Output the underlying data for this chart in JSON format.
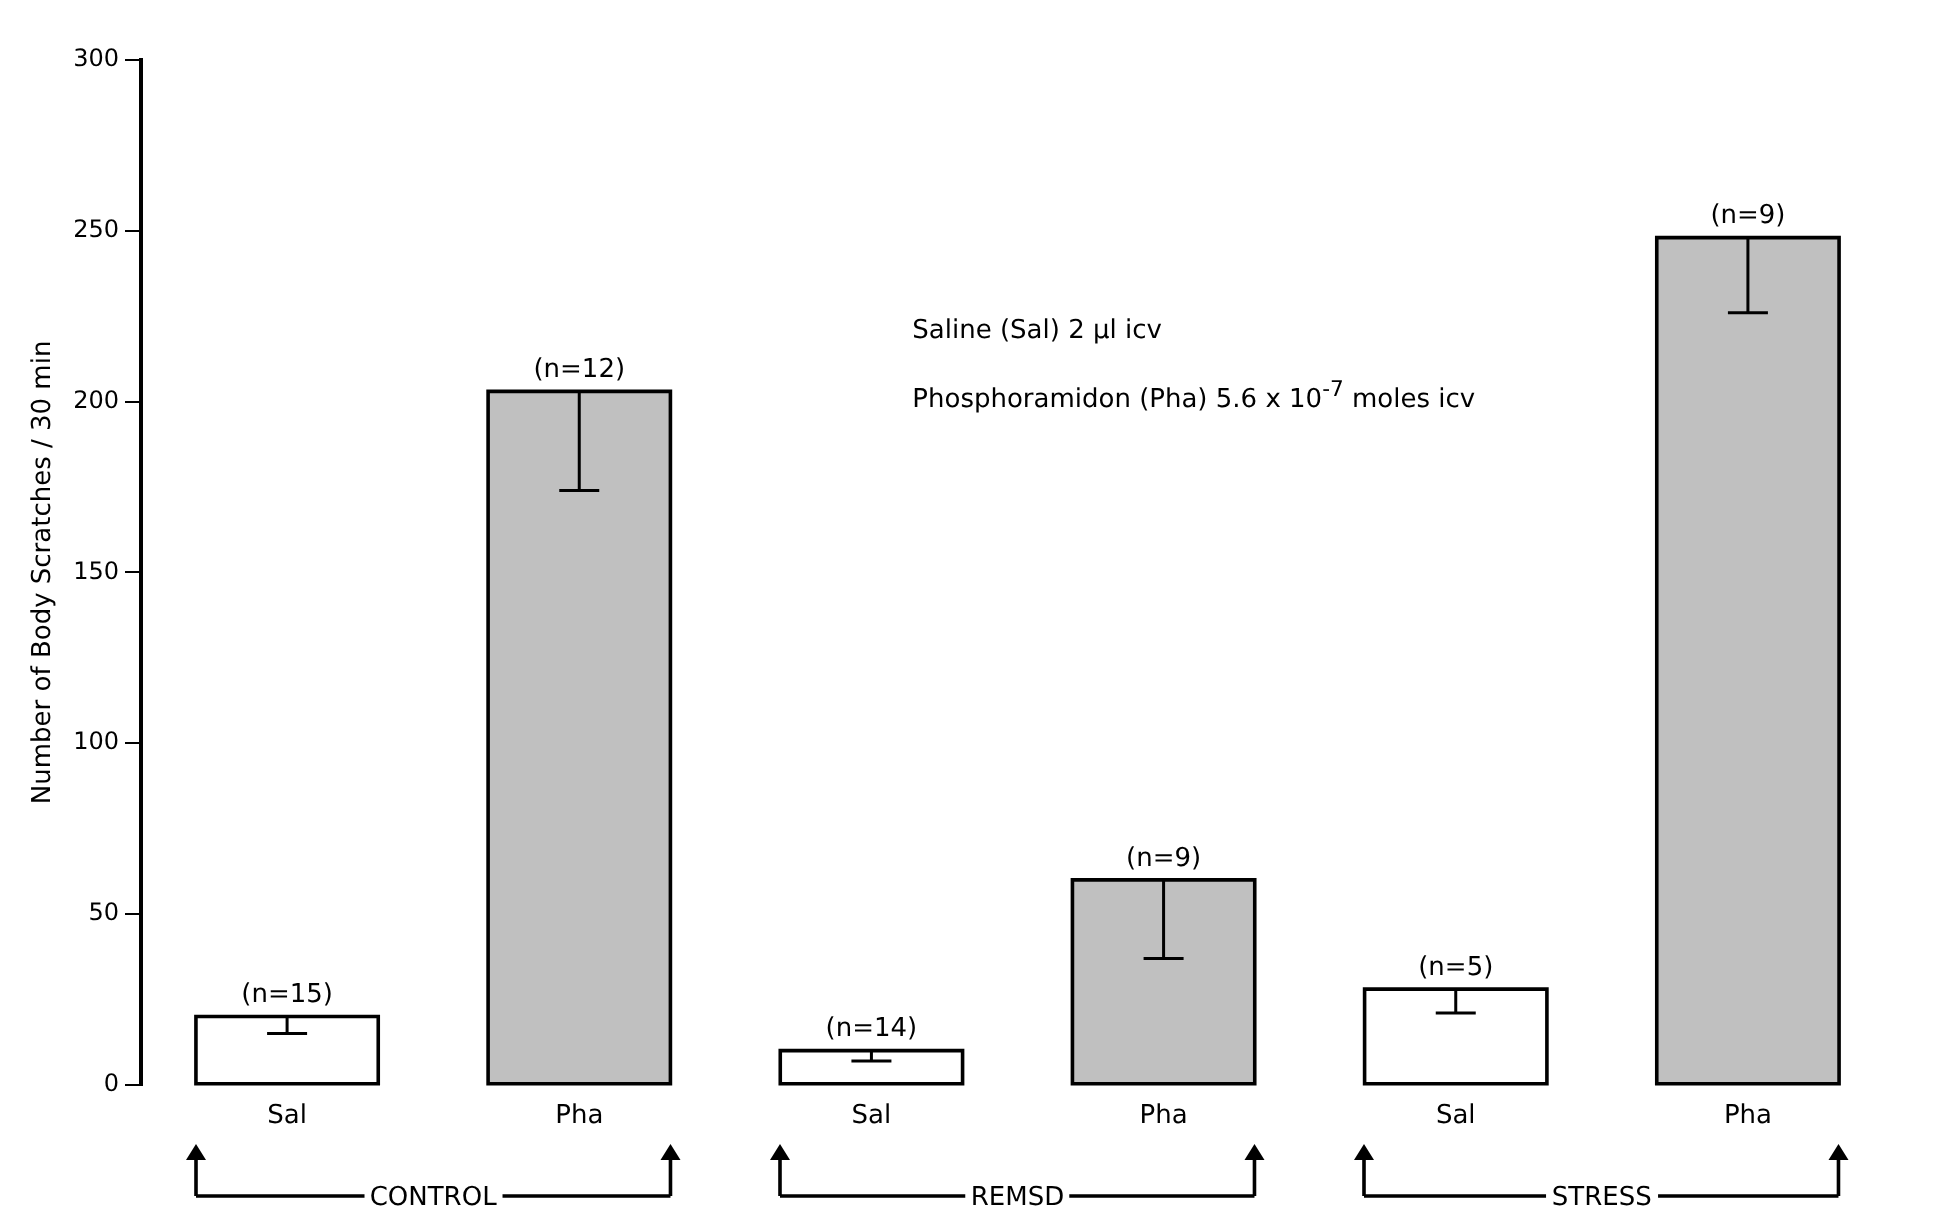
{
  "chart_data": {
    "type": "bar",
    "ylabel": "Number of Body Scratches / 30 min",
    "categories": [
      "Sal",
      "Pha",
      "Sal",
      "Pha",
      "Sal",
      "Pha"
    ],
    "values": [
      20,
      203,
      10,
      60,
      28,
      248
    ],
    "colors": [
      "#ffffff",
      "#c0c0c0",
      "#ffffff",
      "#c0c0c0",
      "#ffffff",
      "#c0c0c0"
    ],
    "errors": [
      [
        15,
        20
      ],
      [
        174,
        203
      ],
      [
        7,
        10
      ],
      [
        37,
        60
      ],
      [
        21,
        28
      ],
      [
        226,
        248
      ]
    ],
    "ylim": [
      0,
      300
    ],
    "yticks": [
      0,
      50,
      100,
      150,
      200,
      250,
      300
    ],
    "grid": false,
    "legend": false,
    "annotations": [
      "(n=15)",
      "(n=12)",
      "(n=14)",
      "(n=9)",
      "(n=5)",
      "(n=9)",
      "Saline (Sal) 2 µl icv",
      "Phosphoramidon (Pha) 5.6 x 10$^{-7}$ moles icv",
      "CONTROL",
      "REMSD",
      "STRESS"
    ]
  }
}
